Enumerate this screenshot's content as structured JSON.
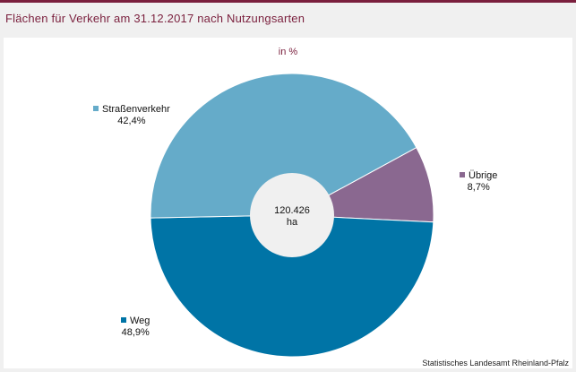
{
  "header": {
    "title": "Flächen für Verkehr am 31.12.2017 nach Nutzungsarten"
  },
  "chart_data": {
    "type": "pie",
    "subtitle": "in %",
    "center_value": "120.426",
    "center_unit": "ha",
    "slices": [
      {
        "name": "Übrige",
        "value": 8.7,
        "label": "8,7%",
        "color": "#8a6890"
      },
      {
        "name": "Weg",
        "value": 48.9,
        "label": "48,9%",
        "color": "#0074a6"
      },
      {
        "name": "Straßenverkehr",
        "value": 42.4,
        "label": "42,4%",
        "color": "#65abc9"
      }
    ]
  },
  "footer": {
    "source": "Statistisches Landesamt Rheinland-Pfalz"
  }
}
